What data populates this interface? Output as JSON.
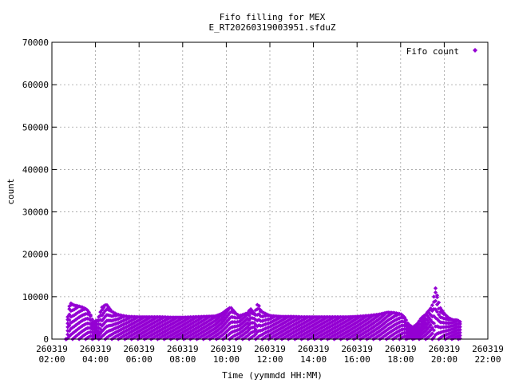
{
  "chart_data": {
    "type": "scatter",
    "title": "Fifo filling for MEX",
    "subtitle": "E_RT20260319003951.sfduZ",
    "xlabel": "Time (yymmdd HH:MM)",
    "ylabel": "count",
    "legend": {
      "label": "Fifo count",
      "placement": "top-right"
    },
    "series_color": "#9400d3",
    "grid": true,
    "xlim": [
      2,
      22
    ],
    "ylim": [
      0,
      70000
    ],
    "x_ticks": [
      {
        "value": 2,
        "date": "260319",
        "time": "02:00"
      },
      {
        "value": 4,
        "date": "260319",
        "time": "04:00"
      },
      {
        "value": 6,
        "date": "260319",
        "time": "06:00"
      },
      {
        "value": 8,
        "date": "260319",
        "time": "08:00"
      },
      {
        "value": 10,
        "date": "260319",
        "time": "10:00"
      },
      {
        "value": 12,
        "date": "260319",
        "time": "12:00"
      },
      {
        "value": 14,
        "date": "260319",
        "time": "14:00"
      },
      {
        "value": 16,
        "date": "260319",
        "time": "16:00"
      },
      {
        "value": 18,
        "date": "260319",
        "time": "18:00"
      },
      {
        "value": 20,
        "date": "260319",
        "time": "20:00"
      },
      {
        "value": 22,
        "date": "260319",
        "time": "22:00"
      }
    ],
    "y_ticks": [
      "0",
      "10000",
      "20000",
      "30000",
      "40000",
      "50000",
      "60000",
      "70000"
    ],
    "envelope": {
      "x": [
        2.65,
        2.75,
        2.85,
        3.0,
        3.2,
        3.4,
        3.6,
        3.75,
        3.9,
        4.1,
        4.3,
        4.5,
        4.75,
        5.0,
        5.25,
        5.5,
        6.0,
        6.5,
        7.0,
        7.5,
        8.0,
        8.5,
        9.0,
        9.5,
        9.8,
        10.0,
        10.2,
        10.45,
        10.6,
        10.8,
        11.0,
        11.1,
        11.3,
        11.45,
        11.6,
        11.8,
        12.0,
        12.5,
        13.0,
        13.5,
        14.0,
        14.5,
        15.0,
        15.5,
        16.0,
        16.5,
        17.0,
        17.4,
        17.7,
        17.9,
        18.05,
        18.2,
        18.35,
        18.55,
        18.75,
        18.95,
        19.15,
        19.25,
        19.35,
        19.45,
        19.6,
        19.8,
        20.0,
        20.2,
        20.4,
        20.6,
        20.75
      ],
      "y": [
        0,
        7000,
        8500,
        8000,
        7800,
        7500,
        7000,
        6000,
        4000,
        4500,
        7500,
        8200,
        6500,
        5800,
        5500,
        5300,
        5200,
        5200,
        5200,
        5100,
        5100,
        5200,
        5300,
        5400,
        6000,
        6800,
        7500,
        6000,
        5500,
        5800,
        6200,
        7200,
        6000,
        8500,
        6500,
        6000,
        5500,
        5300,
        5300,
        5200,
        5200,
        5200,
        5200,
        5200,
        5300,
        5500,
        5800,
        6300,
        6200,
        6000,
        5800,
        5000,
        3500,
        2800,
        3500,
        5000,
        5800,
        6500,
        7000,
        8000,
        12000,
        7500,
        6000,
        5000,
        4500,
        4500,
        4000
      ]
    },
    "point_step_hours": 0.075,
    "bands": 6
  }
}
